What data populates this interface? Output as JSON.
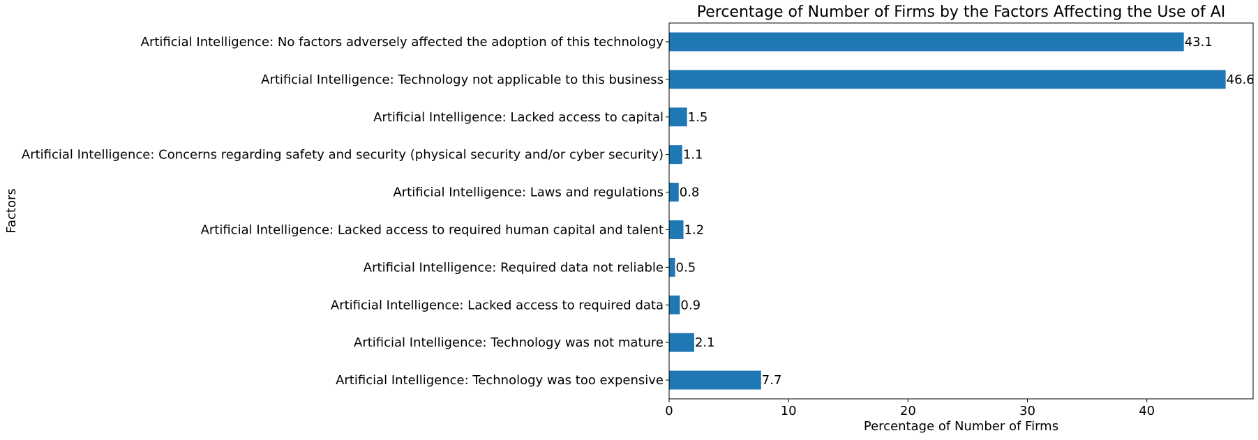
{
  "chart_data": {
    "type": "bar",
    "orientation": "horizontal",
    "title": "Percentage of Number of Firms by the Factors Affecting the Use of AI",
    "xlabel": "Percentage of Number of Firms",
    "ylabel": "Factors",
    "xlim": [
      0,
      48.9
    ],
    "xticks": [
      0,
      10,
      20,
      30,
      40
    ],
    "grid": false,
    "bar_color": "#1f77b4",
    "categories": [
      "Artificial Intelligence: No factors adversely affected the adoption of this technology",
      "Artificial Intelligence: Technology not applicable to this business",
      "Artificial Intelligence: Lacked access to capital",
      "Artificial Intelligence: Concerns regarding safety and security (physical security and/or cyber security)",
      "Artificial Intelligence: Laws and regulations",
      "Artificial Intelligence: Lacked access to required human capital and talent",
      "Artificial Intelligence: Required data not reliable",
      "Artificial Intelligence: Lacked access to required data",
      "Artificial Intelligence: Technology was not mature",
      "Artificial Intelligence: Technology was too expensive"
    ],
    "values": [
      43.1,
      46.6,
      1.5,
      1.1,
      0.8,
      1.2,
      0.5,
      0.9,
      2.1,
      7.7
    ],
    "value_labels": [
      "43.1",
      "46.6",
      "1.5",
      "1.1",
      "0.8",
      "1.2",
      "0.5",
      "0.9",
      "2.1",
      "7.7"
    ]
  }
}
